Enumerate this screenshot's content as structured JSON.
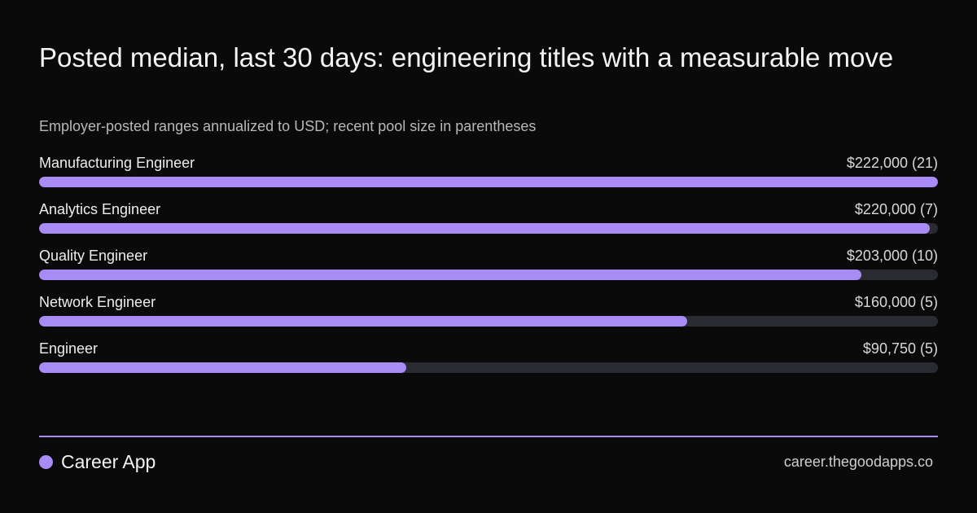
{
  "colors": {
    "accent": "#a98bf6",
    "track": "#2a2a33",
    "background": "#0a0a0a"
  },
  "chart_data": {
    "type": "bar",
    "orientation": "horizontal",
    "title": "Posted median, last 30 days: engineering titles with a measurable move",
    "subtitle": "Employer-posted ranges annualized to USD; recent pool size in parentheses",
    "xlim": [
      0,
      222000
    ],
    "categories": [
      "Manufacturing Engineer",
      "Analytics Engineer",
      "Quality Engineer",
      "Network Engineer",
      "Engineer"
    ],
    "values": [
      222000,
      220000,
      203000,
      160000,
      90750
    ],
    "value_labels": [
      "$222,000 (21)",
      "$220,000 (7)",
      "$203,000 (10)",
      "$160,000 (5)",
      "$90,750 (5)"
    ],
    "pool_sizes": [
      21,
      7,
      10,
      5,
      5
    ]
  },
  "footer": {
    "brand_icon": "dot-icon",
    "brand_name": "Career App",
    "site": "career.thegoodapps.co"
  }
}
